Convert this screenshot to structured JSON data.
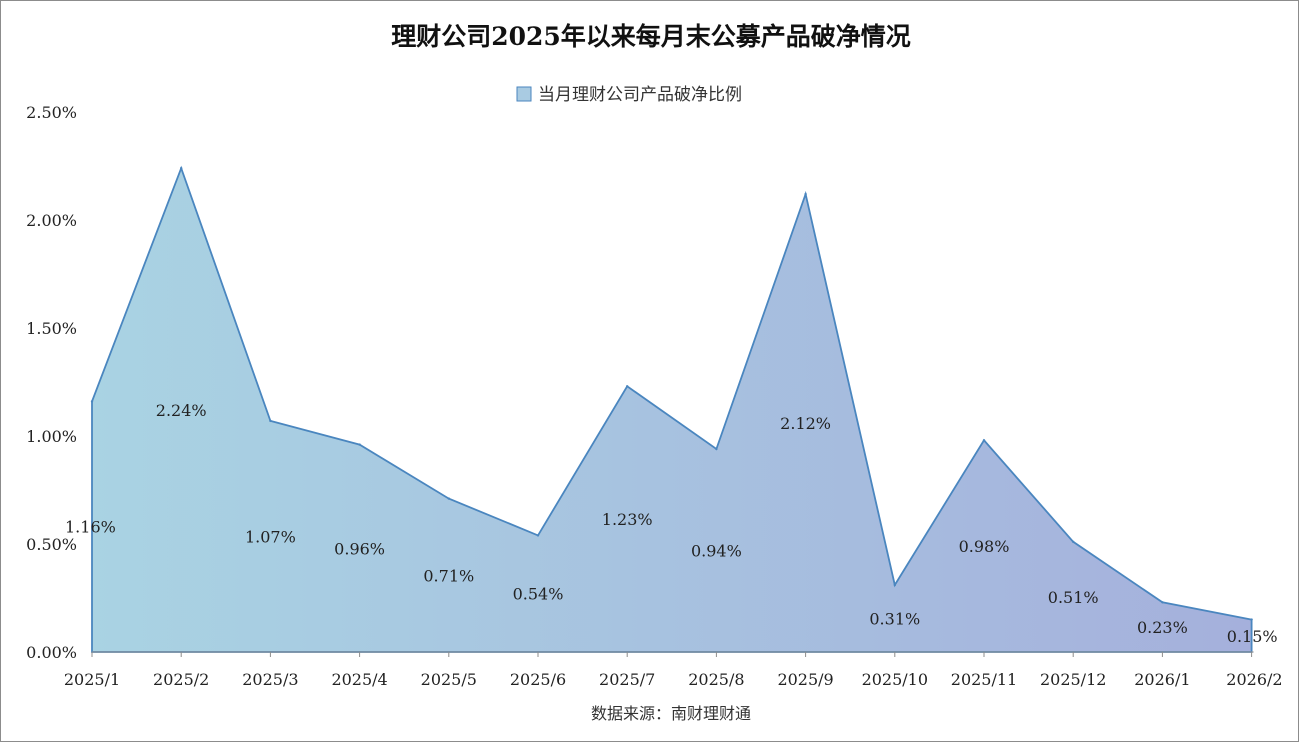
{
  "chart_data": {
    "type": "area",
    "title": "理财公司2025年以来每月末公募产品破净情况",
    "categories": [
      "2025/1",
      "2025/2",
      "2025/3",
      "2025/4",
      "2025/5",
      "2025/6",
      "2025/7",
      "2025/8",
      "2025/9",
      "2025/10",
      "2025/11",
      "2025/12",
      "2026/1",
      "2026/2"
    ],
    "series": [
      {
        "name": "当月理财公司产品破净比例",
        "values": [
          1.16,
          2.24,
          1.07,
          0.96,
          0.71,
          0.54,
          1.23,
          0.94,
          2.12,
          0.31,
          0.98,
          0.51,
          0.23,
          0.15
        ],
        "labels": [
          "1.16%",
          "2.24%",
          "1.07%",
          "0.96%",
          "0.71%",
          "0.54%",
          "1.23%",
          "0.94%",
          "2.12%",
          "0.31%",
          "0.98%",
          "0.51%",
          "0.23%",
          "0.15%"
        ]
      }
    ],
    "y_ticks": [
      "0.00%",
      "0.50%",
      "1.00%",
      "1.50%",
      "2.00%",
      "2.50%"
    ],
    "y_tick_values": [
      0,
      0.5,
      1.0,
      1.5,
      2.0,
      2.5
    ],
    "ylim": [
      0,
      2.5
    ],
    "legend_position": "top-center",
    "grid": false,
    "colors": {
      "line": "#4a86bf",
      "fill_start": "#a9d3e3",
      "fill_end": "#a5b0dc"
    },
    "source_note": "数据来源：南财理财通"
  }
}
